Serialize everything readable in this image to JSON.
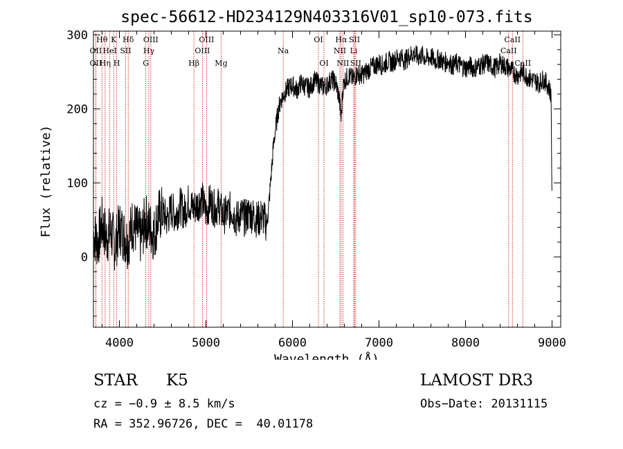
{
  "chart_data": {
    "type": "line",
    "title": "spec-56612-HD234129N403316V01_sp10-073.fits",
    "xlabel": "Wavelength (Å)",
    "ylabel": "Flux (relative)",
    "xlim": [
      3700,
      9100
    ],
    "ylim": [
      -95,
      305
    ],
    "xticks": [
      4000,
      5000,
      6000,
      7000,
      8000,
      9000
    ],
    "yticks": [
      0,
      100,
      200,
      300
    ],
    "series": [
      {
        "name": "flux",
        "x": [
          3700,
          3750,
          3800,
          3850,
          3900,
          3950,
          4000,
          4050,
          4100,
          4150,
          4200,
          4250,
          4300,
          4350,
          4400,
          4450,
          4500,
          4550,
          4600,
          4650,
          4700,
          4750,
          4800,
          4850,
          4900,
          4950,
          5000,
          5050,
          5100,
          5150,
          5200,
          5250,
          5300,
          5350,
          5400,
          5450,
          5500,
          5550,
          5600,
          5650,
          5700,
          5720,
          5740,
          5760,
          5780,
          5800,
          5820,
          5840,
          5860,
          5880,
          5900,
          5950,
          6000,
          6050,
          6100,
          6150,
          6200,
          6250,
          6300,
          6350,
          6400,
          6450,
          6500,
          6540,
          6563,
          6580,
          6600,
          6650,
          6700,
          6750,
          6800,
          6850,
          6900,
          6950,
          7000,
          7050,
          7100,
          7150,
          7200,
          7250,
          7300,
          7350,
          7400,
          7450,
          7500,
          7550,
          7600,
          7650,
          7700,
          7750,
          7800,
          7850,
          7900,
          7950,
          8000,
          8050,
          8100,
          8150,
          8200,
          8250,
          8300,
          8350,
          8400,
          8450,
          8500,
          8550,
          8600,
          8650,
          8700,
          8750,
          8800,
          8850,
          8900,
          8950,
          8990,
          9000
        ],
        "y": [
          30,
          20,
          45,
          25,
          35,
          15,
          40,
          30,
          20,
          45,
          35,
          25,
          50,
          40,
          30,
          55,
          60,
          50,
          65,
          55,
          70,
          60,
          75,
          65,
          70,
          80,
          60,
          75,
          65,
          70,
          55,
          60,
          65,
          50,
          58,
          52,
          60,
          55,
          50,
          55,
          45,
          60,
          90,
          120,
          150,
          170,
          185,
          200,
          210,
          215,
          220,
          228,
          232,
          225,
          235,
          230,
          228,
          238,
          235,
          230,
          232,
          240,
          235,
          215,
          185,
          225,
          238,
          245,
          240,
          248,
          245,
          250,
          255,
          258,
          262,
          258,
          265,
          262,
          268,
          270,
          265,
          272,
          275,
          270,
          272,
          268,
          270,
          265,
          268,
          262,
          265,
          258,
          262,
          258,
          255,
          258,
          255,
          258,
          260,
          262,
          258,
          255,
          262,
          258,
          255,
          250,
          245,
          250,
          245,
          240,
          238,
          235,
          240,
          232,
          220,
          40
        ]
      }
    ],
    "lines": [
      {
        "name": "Hθ",
        "wave": 3798,
        "row": 1
      },
      {
        "name": "OII",
        "wave": 3727,
        "row": 2
      },
      {
        "name": "OII",
        "wave": 3727,
        "row": 3
      },
      {
        "name": "K",
        "wave": 3934,
        "row": 1
      },
      {
        "name": "HeI",
        "wave": 3889,
        "row": 2
      },
      {
        "name": "Hη",
        "wave": 3835,
        "row": 3
      },
      {
        "name": "H",
        "wave": 3969,
        "row": 3
      },
      {
        "name": "Hδ",
        "wave": 4102,
        "row": 1
      },
      {
        "name": "SII",
        "wave": 4072,
        "row": 2
      },
      {
        "name": "OIII",
        "wave": 4363,
        "row": 1
      },
      {
        "name": "Hγ",
        "wave": 4340,
        "row": 2
      },
      {
        "name": "G",
        "wave": 4305,
        "row": 3
      },
      {
        "name": "Hβ",
        "wave": 4861,
        "row": 3
      },
      {
        "name": "OIII",
        "wave": 5007,
        "row": 1
      },
      {
        "name": "OIII",
        "wave": 4959,
        "row": 2
      },
      {
        "name": "Mg",
        "wave": 5175,
        "row": 3
      },
      {
        "name": "Na",
        "wave": 5893,
        "row": 2
      },
      {
        "name": "OI",
        "wave": 6300,
        "row": 1
      },
      {
        "name": "OI",
        "wave": 6364,
        "row": 3
      },
      {
        "name": "Hα",
        "wave": 6563,
        "row": 1
      },
      {
        "name": "NII",
        "wave": 6548,
        "row": 2
      },
      {
        "name": "NII",
        "wave": 6583,
        "row": 3
      },
      {
        "name": "SII",
        "wave": 6716,
        "row": 1
      },
      {
        "name": "Li",
        "wave": 6708,
        "row": 2
      },
      {
        "name": "SII",
        "wave": 6731,
        "row": 3
      },
      {
        "name": "CaII",
        "wave": 8542,
        "row": 1
      },
      {
        "name": "CaII",
        "wave": 8498,
        "row": 2
      },
      {
        "name": "CaII",
        "wave": 8662,
        "row": 3
      }
    ]
  },
  "info": {
    "object_type": "STAR",
    "subclass": "K5",
    "survey": "LAMOST DR3",
    "cz": "cz = −0.9 ± 8.5 km/s",
    "obs_date": "Obs−Date: 20131115",
    "coords": "RA = 352.96726, DEC =  40.01178"
  },
  "colors": {
    "spectrum": "#000000",
    "line_marker": "#cc0000",
    "axis": "#000000"
  }
}
